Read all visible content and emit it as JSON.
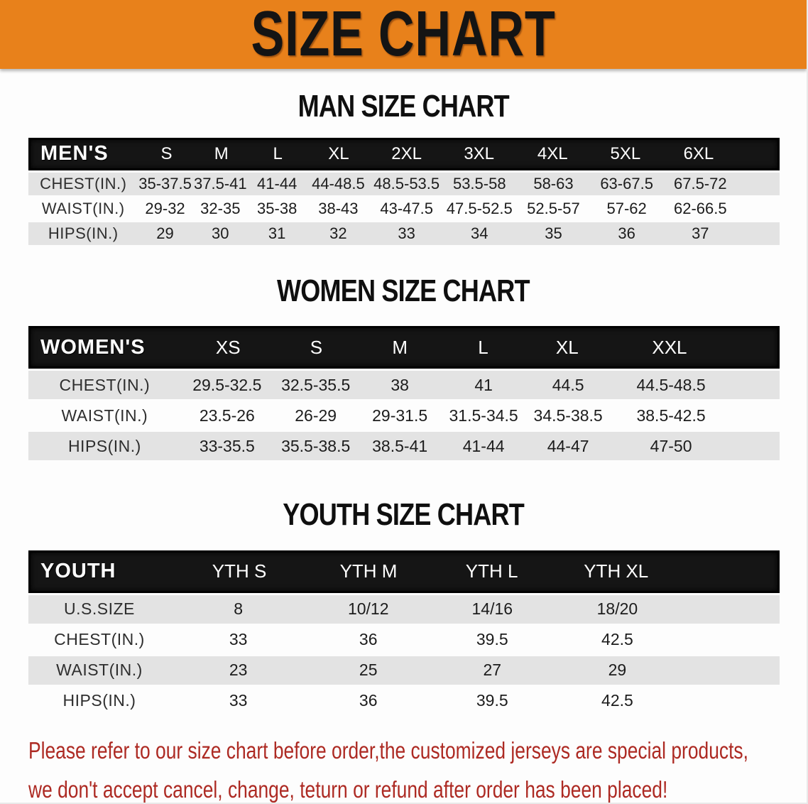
{
  "banner": {
    "title": "SIZE CHART",
    "bg_color": "#e8811b",
    "text_color": "#141414"
  },
  "sections": [
    {
      "title": "MAN SIZE CHART",
      "header_label": "MEN'S",
      "columns": [
        "S",
        "M",
        "L",
        "XL",
        "2XL",
        "3XL",
        "4XL",
        "5XL",
        "6XL"
      ],
      "rows": [
        {
          "label": "CHEST(IN.)",
          "values": [
            "35-37.5",
            "37.5-41",
            "41-44",
            "44-48.5",
            "48.5-53.5",
            "53.5-58",
            "58-63",
            "63-67.5",
            "67.5-72"
          ]
        },
        {
          "label": "WAIST(IN.)",
          "values": [
            "29-32",
            "32-35",
            "35-38",
            "38-43",
            "43-47.5",
            "47.5-52.5",
            "52.5-57",
            "57-62",
            "62-66.5"
          ]
        },
        {
          "label": "HIPS(IN.)",
          "values": [
            "29",
            "30",
            "31",
            "32",
            "33",
            "34",
            "35",
            "36",
            "37"
          ]
        }
      ]
    },
    {
      "title": "WOMEN SIZE CHART",
      "header_label": "WOMEN'S",
      "columns": [
        "XS",
        "S",
        "M",
        "L",
        "XL",
        "XXL"
      ],
      "rows": [
        {
          "label": "CHEST(IN.)",
          "values": [
            "29.5-32.5",
            "32.5-35.5",
            "38",
            "41",
            "44.5",
            "44.5-48.5"
          ]
        },
        {
          "label": "WAIST(IN.)",
          "values": [
            "23.5-26",
            "26-29",
            "29-31.5",
            "31.5-34.5",
            "34.5-38.5",
            "38.5-42.5"
          ]
        },
        {
          "label": "HIPS(IN.)",
          "values": [
            "33-35.5",
            "35.5-38.5",
            "38.5-41",
            "41-44",
            "44-47",
            "47-50"
          ]
        }
      ]
    },
    {
      "title": "YOUTH SIZE CHART",
      "header_label": "YOUTH",
      "columns": [
        "YTH S",
        "YTH M",
        "YTH L",
        "YTH XL"
      ],
      "rows": [
        {
          "label": "U.S.SIZE",
          "values": [
            "8",
            "10/12",
            "14/16",
            "18/20"
          ]
        },
        {
          "label": "CHEST(IN.)",
          "values": [
            "33",
            "36",
            "39.5",
            "42.5"
          ]
        },
        {
          "label": "WAIST(IN.)",
          "values": [
            "23",
            "25",
            "27",
            "29"
          ]
        },
        {
          "label": "HIPS(IN.)",
          "values": [
            "33",
            "36",
            "39.5",
            "42.5"
          ]
        }
      ]
    }
  ],
  "disclaimer": {
    "line1": "Please refer to our size chart before order,the customized jerseys are special products,",
    "line2": "we don't accept cancel, change, teturn or refund after order has been placed!",
    "color": "#ad2a23"
  }
}
